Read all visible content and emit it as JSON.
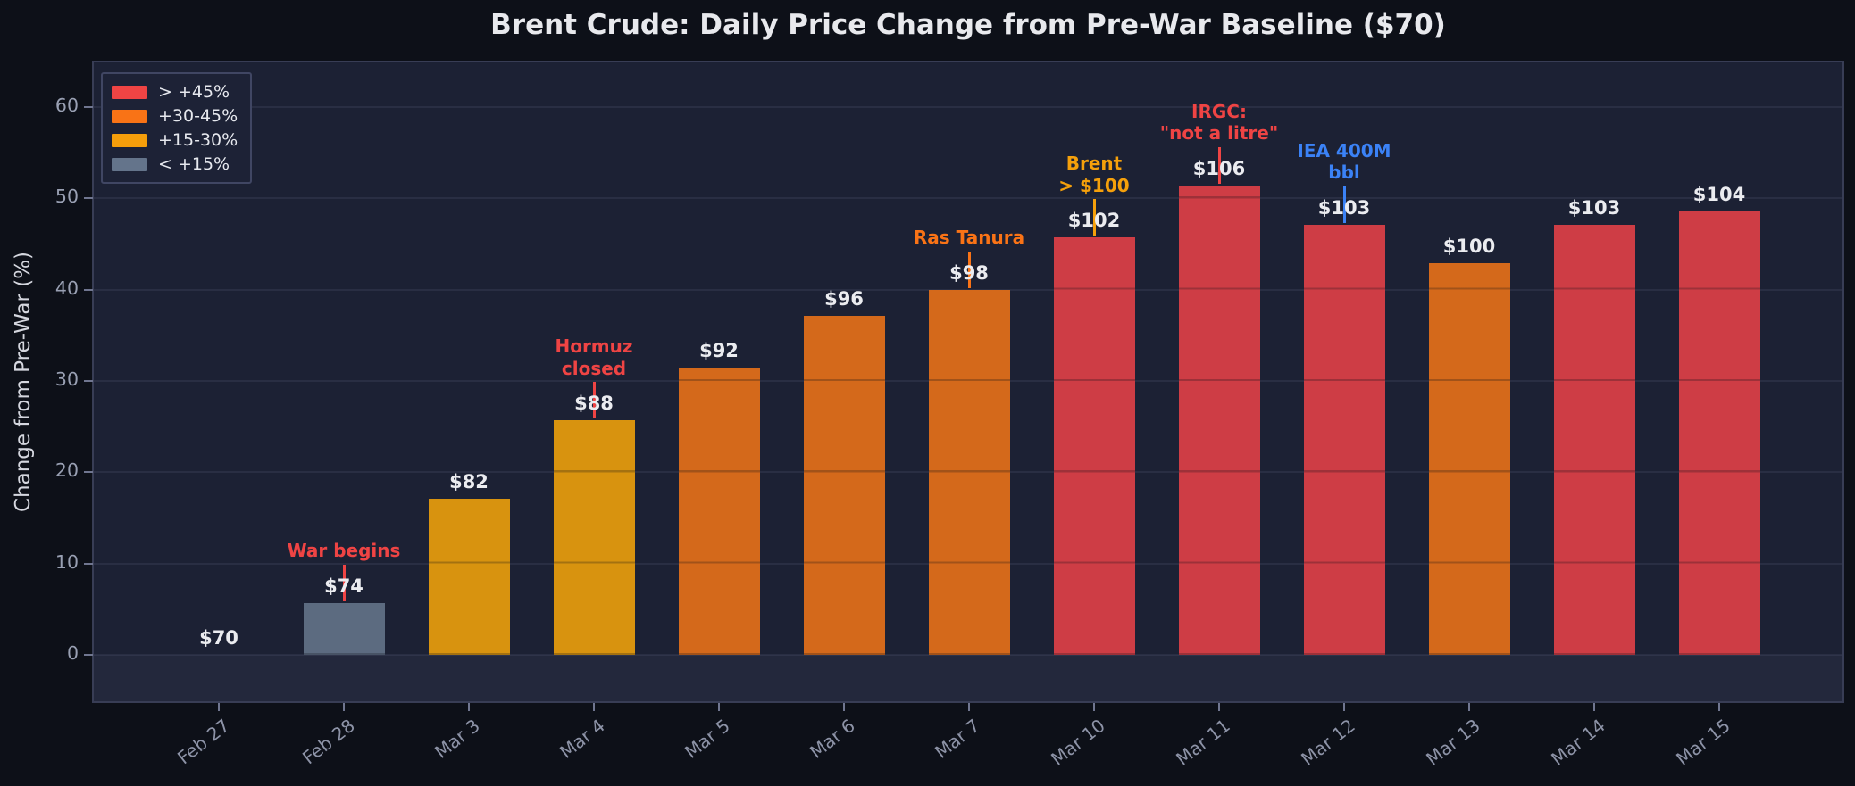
{
  "title": "Brent Crude: Daily Price Change from Pre-War Baseline ($70)",
  "y_axis": {
    "label": "Change from Pre-War (%)",
    "ticks": [
      0,
      10,
      20,
      30,
      40,
      50,
      60
    ]
  },
  "legend": {
    "position": "upper-left",
    "items": [
      {
        "label": "> +45%",
        "color": "#EF4444"
      },
      {
        "label": "+30-45%",
        "color": "#F97316"
      },
      {
        "label": "+15-30%",
        "color": "#F59E0B"
      },
      {
        "label": "< +15%",
        "color": "#64748B"
      }
    ]
  },
  "chart_data": {
    "type": "bar",
    "title": "Brent Crude: Daily Price Change from Pre-War Baseline ($70)",
    "xlabel": "",
    "ylabel": "Change from Pre-War (%)",
    "ylim": [
      -5.1,
      64.9
    ],
    "yticks": [
      0,
      10,
      20,
      30,
      40,
      50,
      60
    ],
    "grid": "horizontal",
    "legend_position": "upper-left",
    "categories": [
      "Feb 27",
      "Feb 28",
      "Mar 3",
      "Mar 4",
      "Mar 5",
      "Mar 6",
      "Mar 7",
      "Mar 10",
      "Mar 11",
      "Mar 12",
      "Mar 13",
      "Mar 14",
      "Mar 15"
    ],
    "values": [
      0.0,
      5.71,
      17.14,
      25.71,
      31.43,
      37.14,
      40.0,
      45.71,
      51.43,
      47.14,
      42.86,
      47.14,
      48.57
    ],
    "bar_labels": [
      "$70",
      "$74",
      "$82",
      "$88",
      "$92",
      "$96",
      "$98",
      "$102",
      "$106",
      "$103",
      "$100",
      "$103",
      "$104"
    ],
    "prices_usd": [
      70,
      74,
      82,
      88,
      92,
      96,
      98,
      102,
      106,
      103,
      100,
      103,
      104
    ],
    "bar_colors": [
      "#5C6B80",
      "#5C6B80",
      "#D8930F",
      "#D8930F",
      "#D4691B",
      "#D4691B",
      "#D4691B",
      "#CE3D45",
      "#CE3D45",
      "#CE3D45",
      "#D4691B",
      "#CE3D45",
      "#CE3D45"
    ],
    "annotations": [
      {
        "category": "Feb 28",
        "text": "War begins",
        "color": "#EF4444"
      },
      {
        "category": "Mar 4",
        "text": "Hormuz\nclosed",
        "color": "#EF4444"
      },
      {
        "category": "Mar 7",
        "text": "Ras Tanura",
        "color": "#F97316"
      },
      {
        "category": "Mar 10",
        "text": "Brent\n> $100",
        "color": "#F5A00B"
      },
      {
        "category": "Mar 11",
        "text": "IRGC:\n\"not a litre\"",
        "color": "#EF4444"
      },
      {
        "category": "Mar 12",
        "text": "IEA 400M\nbbl",
        "color": "#3B82F6"
      }
    ]
  }
}
